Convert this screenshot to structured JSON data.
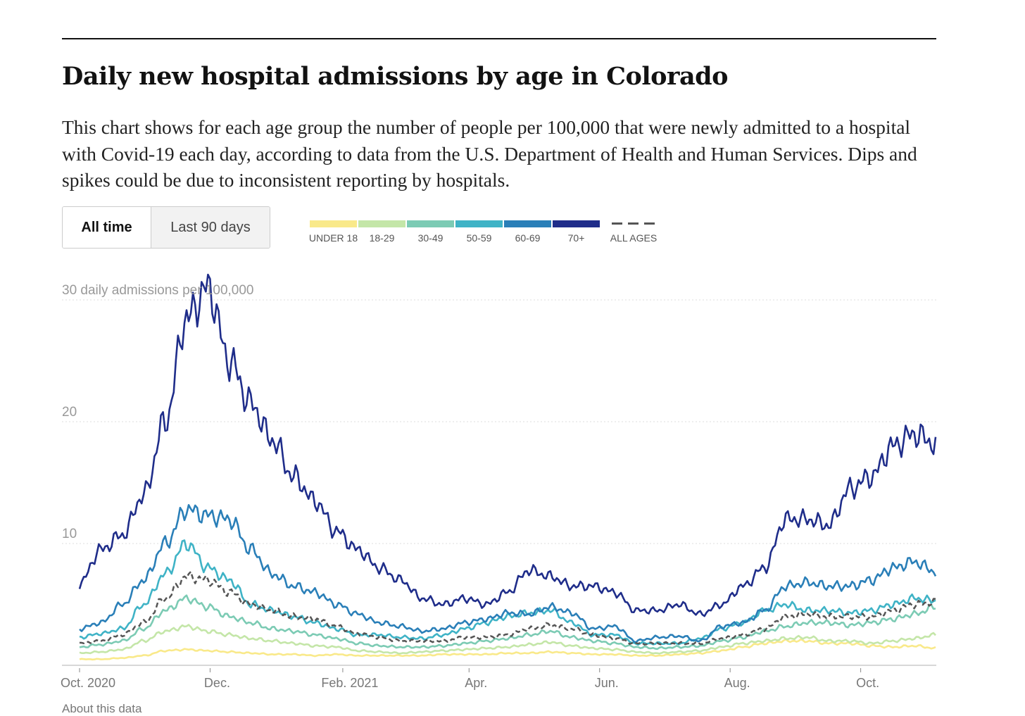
{
  "title": "Daily new hospital admissions by age in Colorado",
  "description": "This chart shows for each age group the number of people per 100,000 that were newly admitted to a hospital with Covid-19 each day, according to data from the U.S. Department of Health and Human Services. Dips and spikes could be due to inconsistent reporting by hospitals.",
  "toggle": {
    "all_time": "All time",
    "last_90": "Last 90 days"
  },
  "about_link": "About this data",
  "chart_data": {
    "type": "line",
    "title": "Daily new hospital admissions by age in Colorado",
    "ylabel": "daily admissions per 100,000",
    "ylim": [
      0,
      30
    ],
    "yticks": [
      {
        "value": 10,
        "label": "10"
      },
      {
        "value": 20,
        "label": "20"
      },
      {
        "value": 30,
        "label": "30 daily admissions per 100,000"
      }
    ],
    "x_unit": "days since Oct. 1, 2020",
    "xlim": [
      0,
      400
    ],
    "xticks": [
      {
        "value": 0,
        "label": "Oct. 2020"
      },
      {
        "value": 61,
        "label": "Dec."
      },
      {
        "value": 123,
        "label": "Feb. 2021"
      },
      {
        "value": 182,
        "label": "Apr."
      },
      {
        "value": 243,
        "label": "Jun."
      },
      {
        "value": 304,
        "label": "Aug."
      },
      {
        "value": 365,
        "label": "Oct."
      }
    ],
    "grid": true,
    "legend_position": "top",
    "x": [
      0,
      10,
      20,
      30,
      40,
      50,
      60,
      70,
      80,
      90,
      100,
      110,
      120,
      130,
      140,
      150,
      160,
      170,
      180,
      190,
      200,
      210,
      220,
      230,
      240,
      250,
      260,
      270,
      280,
      290,
      300,
      310,
      320,
      330,
      340,
      350,
      360,
      370,
      380,
      390,
      400
    ],
    "series": [
      {
        "name": "UNDER 18",
        "color": "#f9e98a",
        "dashed": false,
        "values": [
          0.5,
          0.5,
          0.6,
          0.8,
          1.2,
          1.3,
          1.2,
          1.1,
          1,
          0.9,
          0.9,
          0.8,
          0.9,
          0.8,
          0.8,
          0.8,
          0.8,
          0.9,
          0.9,
          0.9,
          1,
          1,
          1.1,
          1,
          0.9,
          0.9,
          0.8,
          0.8,
          0.9,
          1,
          1.2,
          1.5,
          1.8,
          2,
          2,
          1.8,
          1.8,
          1.6,
          1.5,
          1.6,
          1.4
        ]
      },
      {
        "name": "18-29",
        "color": "#c4e6a8",
        "dashed": false,
        "values": [
          1,
          1.1,
          1.3,
          2,
          2.8,
          3.2,
          2.8,
          2.5,
          2.2,
          2,
          1.8,
          1.6,
          1.5,
          1.2,
          1.1,
          1,
          1.1,
          1.2,
          1.3,
          1.4,
          1.5,
          1.7,
          1.9,
          1.6,
          1.4,
          1.3,
          1.1,
          1,
          1.1,
          1.2,
          1.5,
          1.8,
          2,
          2.2,
          2.3,
          2,
          2,
          1.8,
          2,
          2.2,
          2.5
        ]
      },
      {
        "name": "30-49",
        "color": "#7ccbb4",
        "dashed": false,
        "values": [
          1.5,
          1.7,
          2,
          3,
          4.5,
          5.5,
          4.8,
          4,
          3.5,
          3,
          2.8,
          2.5,
          2.2,
          1.8,
          1.6,
          1.5,
          1.5,
          1.6,
          1.8,
          2,
          2.2,
          2.5,
          2.8,
          2.3,
          2,
          1.8,
          1.5,
          1.4,
          1.5,
          1.6,
          2,
          2.3,
          2.8,
          3.2,
          3.5,
          3.5,
          3.3,
          3.5,
          3.8,
          4.2,
          4.8
        ]
      },
      {
        "name": "50-59",
        "color": "#3fb3c6",
        "dashed": false,
        "values": [
          2.3,
          2.6,
          3,
          5,
          7.5,
          10,
          8,
          7,
          5,
          4.5,
          4,
          3.5,
          3,
          2.5,
          2.5,
          2.3,
          2.2,
          2.5,
          3,
          3.5,
          4,
          4.3,
          4.5,
          3.5,
          2.5,
          2.5,
          1.8,
          1.8,
          1.8,
          2.2,
          3,
          3.5,
          4.5,
          5,
          4.5,
          4.5,
          4.3,
          4.5,
          5,
          5.5,
          5.3
        ]
      },
      {
        "name": "60-69",
        "color": "#2a7fb8",
        "dashed": false,
        "values": [
          3,
          3.5,
          5,
          7,
          10,
          12.8,
          12.3,
          12,
          9.5,
          7.5,
          6.5,
          6,
          5,
          4.2,
          3.5,
          3.2,
          2.8,
          3,
          3.5,
          3.8,
          4.3,
          4.2,
          4.8,
          4.3,
          3,
          3.2,
          2,
          2.3,
          2.4,
          2,
          3.2,
          3.5,
          4.5,
          6.5,
          6.8,
          6.5,
          6.5,
          7,
          8,
          8.5,
          7.7
        ]
      },
      {
        "name": "70+",
        "color": "#1f2d8a",
        "dashed": false,
        "values": [
          6.7,
          9.5,
          10.7,
          14,
          20,
          28.5,
          31,
          25,
          21.5,
          18.5,
          15.5,
          13.5,
          11,
          9.5,
          8,
          7,
          5.5,
          5,
          5.5,
          5,
          6,
          7.8,
          7.3,
          6.5,
          6.5,
          6,
          4.5,
          4.5,
          5,
          4.2,
          5,
          6.5,
          8,
          12,
          12,
          11.5,
          14.5,
          15.5,
          18,
          19,
          18.2
        ]
      },
      {
        "name": "ALL AGES",
        "color": "#555555",
        "dashed": true,
        "values": [
          1.8,
          2,
          2.5,
          3.5,
          5.5,
          7.3,
          7,
          6,
          5,
          4.5,
          4,
          3.8,
          3.2,
          2.6,
          2.3,
          2,
          2,
          2,
          2.3,
          2.3,
          2.5,
          3,
          3.3,
          3,
          2.5,
          2.2,
          1.8,
          1.8,
          1.8,
          1.8,
          2.2,
          2.5,
          3,
          4,
          4.2,
          4,
          4,
          4,
          4.5,
          5,
          5.2
        ]
      }
    ]
  }
}
